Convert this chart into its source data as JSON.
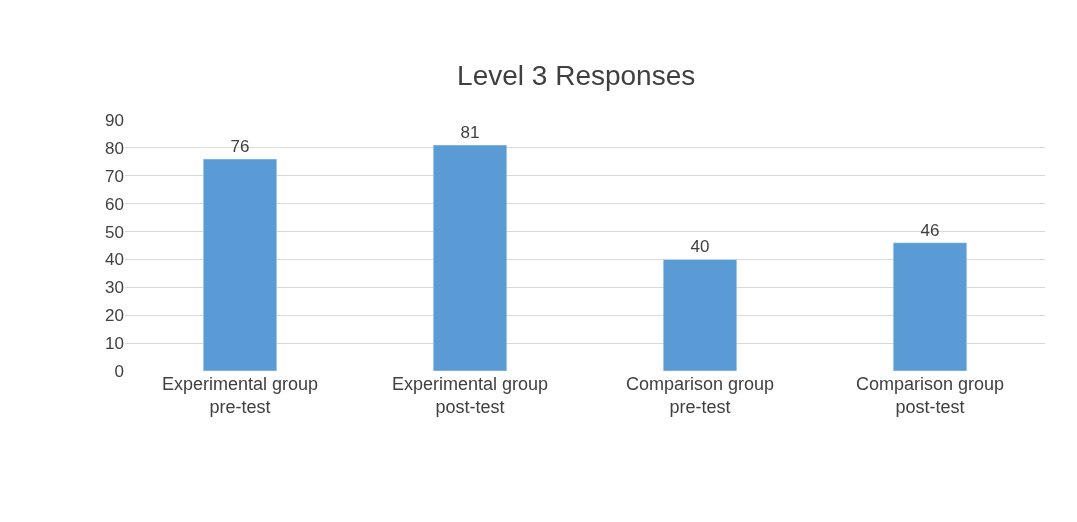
{
  "chart_data": {
    "type": "bar",
    "title": "Level 3 Responses",
    "categories": [
      "Experimental group pre-test",
      "Experimental group post-test",
      "Comparison group pre-test",
      "Comparison group post-test"
    ],
    "values": [
      76,
      81,
      40,
      46
    ],
    "color": "#5b9bd5",
    "ylim": [
      0,
      90
    ],
    "yticks": [
      0,
      10,
      20,
      30,
      40,
      50,
      60,
      70,
      80,
      90
    ],
    "grid": "y",
    "data_labels": true
  }
}
